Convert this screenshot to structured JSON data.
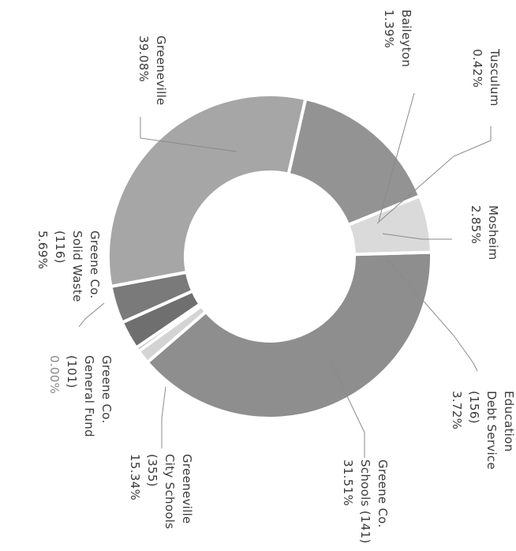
{
  "chart_data": {
    "type": "pie",
    "donut": true,
    "orientation": "rotated-90-clockwise",
    "slices": [
      {
        "name": "Greeneville",
        "pct_label": "39.08%",
        "value": 39.08,
        "color": "#8e8e8e"
      },
      {
        "name": "Baileyton",
        "pct_label": "1.39%",
        "value": 1.39,
        "color": "#d4d4d4"
      },
      {
        "name": "Tusculum",
        "pct_label": "0.42%",
        "value": 0.42,
        "color": "#b8b8b8"
      },
      {
        "name": "Mosheim",
        "pct_label": "2.85%",
        "value": 2.85,
        "color": "#6f6f6f"
      },
      {
        "name": "Education Debt Service (156)",
        "pct_label": "3.72%",
        "value": 3.72,
        "color": "#7a7a7a"
      },
      {
        "name": "Greene Co. Schools (141)",
        "pct_label": "31.51%",
        "value": 31.51,
        "color": "#a6a6a6"
      },
      {
        "name": "Greeneville City Schools (355)",
        "pct_label": "15.34%",
        "value": 15.34,
        "color": "#939393"
      },
      {
        "name": "Greene Co. General Fund (101)",
        "pct_label": "0.00%",
        "value": 0.0,
        "color": "#c8c8c8"
      },
      {
        "name": "Greene Co. Solid Waste (116)",
        "pct_label": "5.69%",
        "value": 5.69,
        "color": "#dadada"
      }
    ]
  },
  "labels": {
    "greeneville": {
      "lines": [
        "Greeneville",
        "39.08%"
      ]
    },
    "baileyton": {
      "lines": [
        "Baileyton",
        "1.39%"
      ]
    },
    "tusculum": {
      "lines": [
        "Tusculum",
        "0.42%"
      ]
    },
    "mosheim": {
      "lines": [
        "Mosheim",
        "2.85%"
      ]
    },
    "education": {
      "lines": [
        "Education",
        "Debt Service",
        "(156)",
        "3.72%"
      ]
    },
    "greene_schools": {
      "lines": [
        "Greene Co.",
        "Schools (141)",
        "31.51%"
      ]
    },
    "city_schools": {
      "lines": [
        "Greeneville",
        "City Schools",
        "(355)",
        "15.34%"
      ]
    },
    "general_fund": {
      "lines": [
        "Greene Co.",
        "General Fund",
        "(101)",
        "0.00%"
      ]
    },
    "solid_waste": {
      "lines": [
        "Greene Co.",
        "Solid Waste",
        "(116)",
        "5.69%"
      ]
    }
  }
}
